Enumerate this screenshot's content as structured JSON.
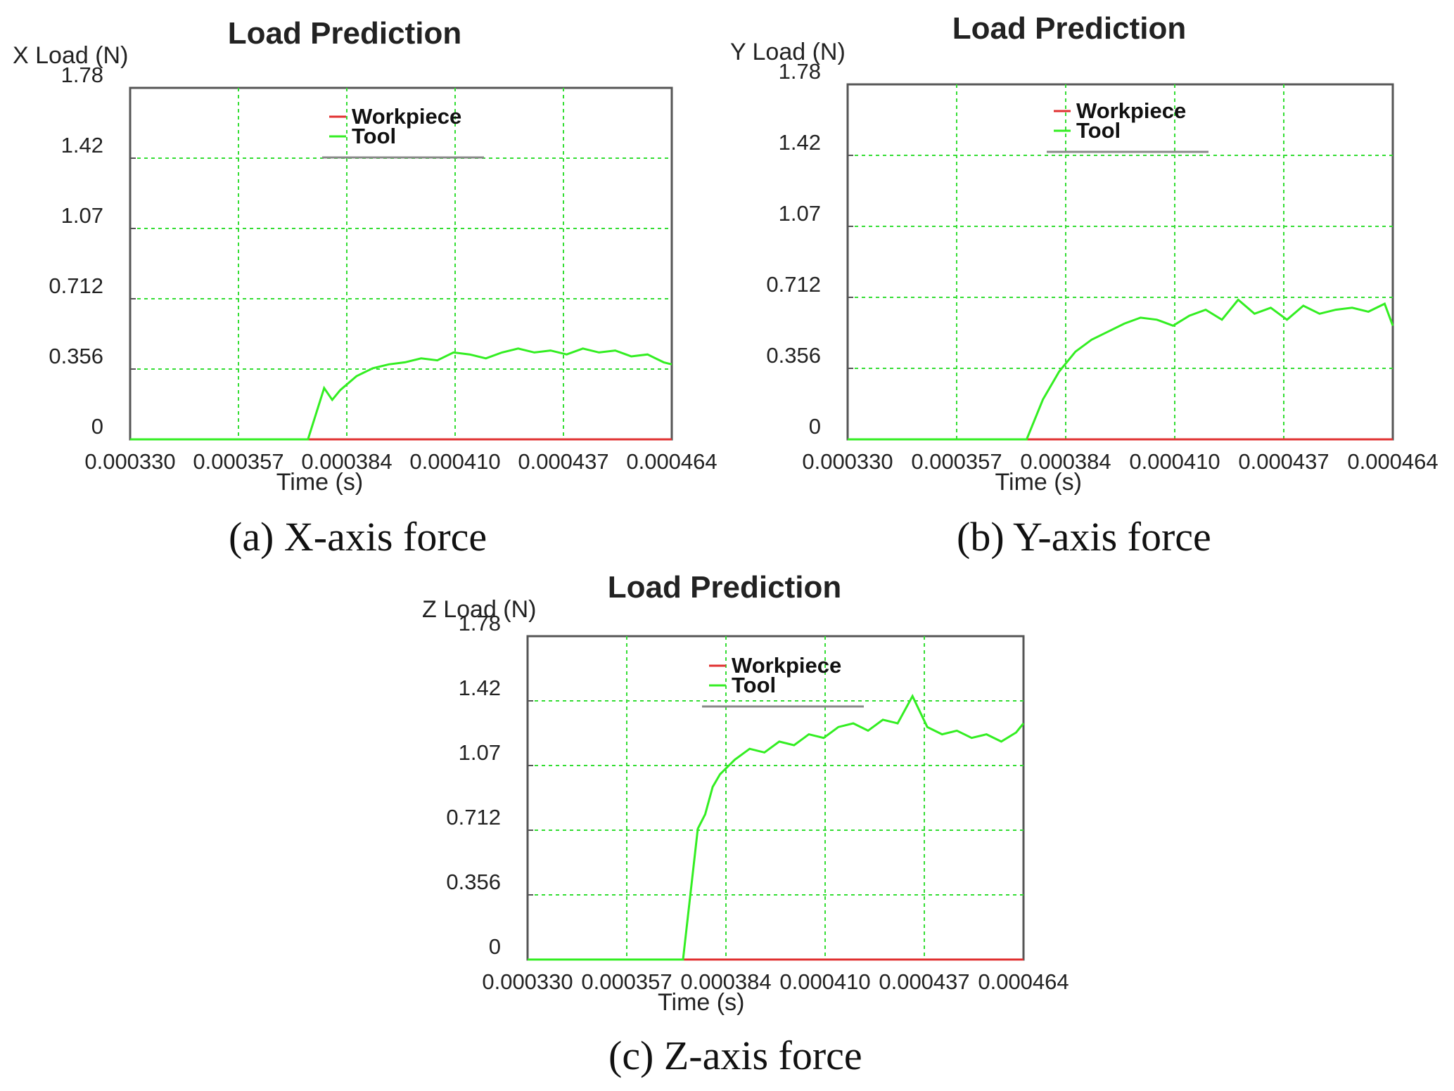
{
  "chart_data": [
    {
      "type": "line",
      "title": "Load Prediction",
      "ylabel": "X Load (N)",
      "xlabel": "Time (s)",
      "caption": "(a) X-axis force",
      "x_ticks": [
        "0.000330",
        "0.000357",
        "0.000384",
        "0.000410",
        "0.000437",
        "0.000464"
      ],
      "y_ticks": [
        "0",
        "0.356",
        "0.712",
        "1.07",
        "1.42",
        "1.78"
      ],
      "xlim": [
        0.00033,
        0.000464
      ],
      "ylim": [
        0,
        1.78
      ],
      "grid": true,
      "legend_position": "top-center",
      "colors": {
        "Workpiece": "#e03030",
        "Tool": "#33ee22",
        "grid": "#33dd33"
      },
      "series": [
        {
          "name": "Workpiece",
          "x": [
            0.00033,
            0.000464
          ],
          "y": [
            0,
            0
          ]
        },
        {
          "name": "Tool",
          "x": [
            0.00033,
            0.000374,
            0.000378,
            0.00038,
            0.000382,
            0.000386,
            0.00039,
            0.000394,
            0.000398,
            0.000402,
            0.000406,
            0.00041,
            0.000414,
            0.000418,
            0.000422,
            0.000426,
            0.00043,
            0.000434,
            0.000438,
            0.000442,
            0.000446,
            0.00045,
            0.000454,
            0.000458,
            0.000462,
            0.000464
          ],
          "y": [
            0,
            0,
            0.26,
            0.2,
            0.25,
            0.32,
            0.36,
            0.38,
            0.39,
            0.41,
            0.4,
            0.44,
            0.43,
            0.41,
            0.44,
            0.46,
            0.44,
            0.45,
            0.43,
            0.46,
            0.44,
            0.45,
            0.42,
            0.43,
            0.39,
            0.38
          ]
        }
      ]
    },
    {
      "type": "line",
      "title": "Load Prediction",
      "ylabel": "Y Load (N)",
      "xlabel": "Time (s)",
      "caption": "(b) Y-axis force",
      "x_ticks": [
        "0.000330",
        "0.000357",
        "0.000384",
        "0.000410",
        "0.000437",
        "0.000464"
      ],
      "y_ticks": [
        "0",
        "0.356",
        "0.712",
        "1.07",
        "1.42",
        "1.78"
      ],
      "xlim": [
        0.00033,
        0.000464
      ],
      "ylim": [
        0,
        1.78
      ],
      "grid": true,
      "legend_position": "top-center",
      "colors": {
        "Workpiece": "#e03030",
        "Tool": "#33ee22",
        "grid": "#33dd33"
      },
      "series": [
        {
          "name": "Workpiece",
          "x": [
            0.00033,
            0.000464
          ],
          "y": [
            0,
            0
          ]
        },
        {
          "name": "Tool",
          "x": [
            0.00033,
            0.000374,
            0.000378,
            0.000382,
            0.000386,
            0.00039,
            0.000394,
            0.000398,
            0.000402,
            0.000406,
            0.00041,
            0.000414,
            0.000418,
            0.000422,
            0.000426,
            0.00043,
            0.000434,
            0.000438,
            0.000442,
            0.000446,
            0.00045,
            0.000454,
            0.000458,
            0.000462,
            0.000464
          ],
          "y": [
            0,
            0,
            0.2,
            0.34,
            0.44,
            0.5,
            0.54,
            0.58,
            0.61,
            0.6,
            0.57,
            0.62,
            0.65,
            0.6,
            0.7,
            0.63,
            0.66,
            0.6,
            0.67,
            0.63,
            0.65,
            0.66,
            0.64,
            0.68,
            0.57
          ]
        }
      ]
    },
    {
      "type": "line",
      "title": "Load Prediction",
      "ylabel": "Z Load (N)",
      "xlabel": "Time (s)",
      "caption": "(c) Z-axis force",
      "x_ticks": [
        "0.000330",
        "0.000357",
        "0.000384",
        "0.000410",
        "0.000437",
        "0.000464"
      ],
      "y_ticks": [
        "0",
        "0.356",
        "0.712",
        "1.07",
        "1.42",
        "1.78"
      ],
      "xlim": [
        0.00033,
        0.000464
      ],
      "ylim": [
        0,
        1.78
      ],
      "grid": true,
      "legend_position": "top-center",
      "colors": {
        "Workpiece": "#e03030",
        "Tool": "#33ee22",
        "grid": "#33dd33"
      },
      "series": [
        {
          "name": "Workpiece",
          "x": [
            0.00033,
            0.000464
          ],
          "y": [
            0,
            0
          ]
        },
        {
          "name": "Tool",
          "x": [
            0.00033,
            0.000372,
            0.000376,
            0.000378,
            0.00038,
            0.000382,
            0.000386,
            0.00039,
            0.000394,
            0.000398,
            0.000402,
            0.000406,
            0.00041,
            0.000414,
            0.000418,
            0.000422,
            0.000426,
            0.00043,
            0.000434,
            0.000438,
            0.000442,
            0.000446,
            0.00045,
            0.000454,
            0.000458,
            0.000462,
            0.000464
          ],
          "y": [
            0,
            0,
            0.72,
            0.8,
            0.95,
            1.02,
            1.1,
            1.16,
            1.14,
            1.2,
            1.18,
            1.24,
            1.22,
            1.28,
            1.3,
            1.26,
            1.32,
            1.3,
            1.45,
            1.28,
            1.24,
            1.26,
            1.22,
            1.24,
            1.2,
            1.25,
            1.3
          ]
        }
      ]
    }
  ]
}
